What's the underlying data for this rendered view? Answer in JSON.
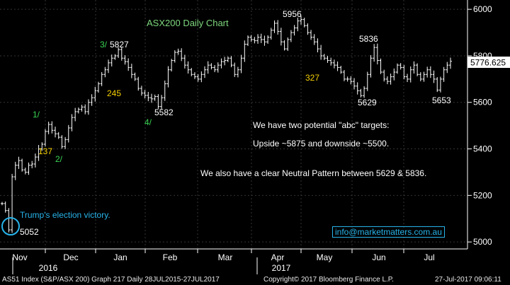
{
  "chart_data": {
    "type": "line",
    "title": "ASX200 Daily Chart",
    "style": "high-low bars",
    "colors": {
      "background": "#000000",
      "price_bars": "#ffffff",
      "title": "#7ed77e",
      "wave_labels_green": "#39d353",
      "wave_labels_yellow": "#f5d000",
      "annotation_text": "#ffffff",
      "election_note": "#27b4ea",
      "last_price_box": "#ffffff"
    },
    "y_axis": {
      "ticks": [
        5000,
        5200,
        5400,
        5600,
        5800,
        6000
      ],
      "ylim": [
        4970,
        6040
      ],
      "last_price_label": "5776.625"
    },
    "x_axis": {
      "month_labels": [
        "Nov",
        "Dec",
        "Jan",
        "Feb",
        "Mar",
        "Apr",
        "May",
        "Jun",
        "Jul"
      ],
      "year_labels": [
        "2016",
        "2017"
      ]
    },
    "series": [
      {
        "values": [
          5165,
          5135,
          5052,
          5280,
          5330,
          5350,
          5310,
          5300,
          5330,
          5335,
          5365,
          5400,
          5420,
          5475,
          5505,
          5480,
          5465,
          5450,
          5410,
          5440,
          5490,
          5535,
          5560,
          5570,
          5580,
          5560,
          5600,
          5620,
          5650,
          5680,
          5720,
          5740,
          5770,
          5790,
          5800,
          5827,
          5790,
          5775,
          5750,
          5720,
          5700,
          5660,
          5640,
          5630,
          5620,
          5615,
          5625,
          5582,
          5620,
          5680,
          5740,
          5780,
          5815,
          5820,
          5790,
          5760,
          5740,
          5720,
          5710,
          5700,
          5720,
          5740,
          5760,
          5750,
          5740,
          5760,
          5775,
          5780,
          5790,
          5760,
          5720,
          5740,
          5790,
          5850,
          5880,
          5870,
          5865,
          5880,
          5870,
          5860,
          5880,
          5910,
          5940,
          5905,
          5860,
          5830,
          5870,
          5900,
          5920,
          5950,
          5956,
          5930,
          5900,
          5880,
          5860,
          5830,
          5800,
          5790,
          5780,
          5770,
          5760,
          5750,
          5730,
          5700,
          5700,
          5690,
          5670,
          5650,
          5629,
          5660,
          5720,
          5790,
          5836,
          5780,
          5730,
          5700,
          5690,
          5710,
          5730,
          5760,
          5750,
          5710,
          5700,
          5740,
          5760,
          5720,
          5700,
          5720,
          5740,
          5720,
          5700,
          5653,
          5700,
          5740,
          5760,
          5776.625
        ]
      }
    ],
    "wave_labels": [
      {
        "text": "1/",
        "color": "green"
      },
      {
        "text": "2/",
        "color": "green"
      },
      {
        "text": "3/",
        "color": "green"
      },
      {
        "text": "4/",
        "color": "green"
      },
      {
        "text": "137",
        "color": "yellow"
      },
      {
        "text": "245",
        "color": "yellow"
      },
      {
        "text": "327",
        "color": "yellow"
      }
    ],
    "level_labels": [
      "5052",
      "5827",
      "5582",
      "5956",
      "5836",
      "5629",
      "5653"
    ],
    "annotations": {
      "election": "Trump's election victory.",
      "line1": "We have two potential \"abc\" targets:",
      "line2": "Upside ~5875 and downside ~5500.",
      "line3": "We also have a clear Neutral Pattern between 5629 & 5836.",
      "email": "info@marketmatters.com.au"
    }
  },
  "footer": {
    "left": "AS51 Index (S&P/ASX 200) Graph 217  Daily 28JUL2015-27JUL2017",
    "center": "Copyright© 2017 Bloomberg Finance L.P.",
    "right": "27-Jul-2017 09:06:11"
  }
}
